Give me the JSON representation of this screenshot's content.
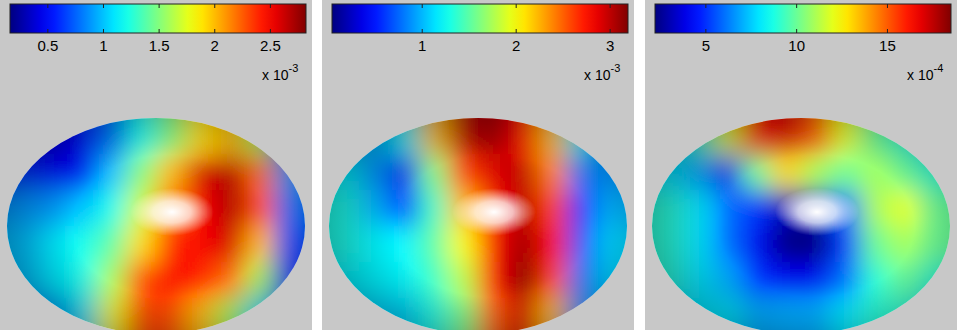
{
  "chart_data": [
    {
      "type": "heatmap",
      "colorbar": {
        "range": [
          0.16,
          2.82
        ],
        "ticks": [
          0.5,
          1,
          1.5,
          2,
          2.5
        ],
        "multiplier": {
          "base": "x 10",
          "exponent": "-3"
        }
      },
      "cells": [
        [
          0.4,
          0.4,
          0.5,
          0.8,
          1.2,
          1.5,
          1.9,
          2.0,
          1.6,
          0.8
        ],
        [
          0.6,
          0.5,
          0.5,
          1.0,
          1.5,
          2.0,
          2.6,
          2.7,
          2.2,
          0.9
        ],
        [
          0.9,
          0.9,
          1.0,
          1.2,
          1.7,
          2.2,
          2.5,
          2.7,
          2.3,
          0.8
        ],
        [
          1.0,
          1.1,
          1.2,
          1.4,
          1.9,
          2.4,
          2.5,
          2.6,
          2.0,
          0.7
        ],
        [
          1.0,
          1.1,
          1.2,
          1.6,
          2.3,
          2.5,
          2.4,
          2.2,
          1.6,
          0.6
        ],
        [
          0.8,
          0.9,
          1.1,
          1.8,
          2.3,
          2.3,
          2.0,
          1.6,
          1.1,
          0.5
        ]
      ]
    },
    {
      "type": "heatmap",
      "colorbar": {
        "range": [
          0.04,
          3.19
        ],
        "ticks": [
          1,
          2,
          3
        ],
        "multiplier": {
          "base": "x 10",
          "exponent": "-3"
        }
      },
      "cells": [
        [
          1.0,
          1.0,
          1.2,
          2.2,
          3.0,
          3.1,
          2.8,
          2.2,
          1.2,
          0.8
        ],
        [
          1.2,
          0.9,
          0.4,
          1.6,
          2.6,
          2.9,
          3.0,
          2.4,
          0.8,
          0.9
        ],
        [
          1.3,
          1.0,
          0.6,
          1.4,
          2.2,
          2.8,
          3.0,
          2.6,
          0.6,
          1.0
        ],
        [
          1.3,
          1.2,
          1.2,
          1.5,
          2.0,
          2.8,
          3.1,
          2.8,
          0.7,
          1.1
        ],
        [
          1.2,
          1.2,
          1.2,
          1.4,
          1.8,
          2.8,
          3.2,
          2.6,
          0.8,
          1.1
        ],
        [
          1.1,
          1.1,
          1.1,
          1.3,
          1.6,
          2.5,
          2.9,
          2.2,
          0.9,
          1.0
        ]
      ]
    },
    {
      "type": "heatmap",
      "colorbar": {
        "range": [
          2.2,
          18.5
        ],
        "ticks": [
          5,
          10,
          15
        ],
        "multiplier": {
          "base": "x 10",
          "exponent": "-4"
        }
      },
      "cells": [
        [
          8,
          9,
          12,
          16,
          17,
          15,
          12,
          10,
          9,
          8
        ],
        [
          8,
          7,
          4,
          10,
          13,
          11,
          10,
          11,
          10,
          9
        ],
        [
          9,
          8,
          6,
          5,
          3,
          3,
          6,
          11,
          12,
          10
        ],
        [
          9,
          8,
          6,
          4,
          2,
          2,
          5,
          10,
          11,
          10
        ],
        [
          9,
          8,
          7,
          5,
          4,
          4,
          6,
          9,
          10,
          9
        ],
        [
          8,
          8,
          8,
          7,
          7,
          7,
          8,
          9,
          9,
          8
        ]
      ]
    }
  ]
}
